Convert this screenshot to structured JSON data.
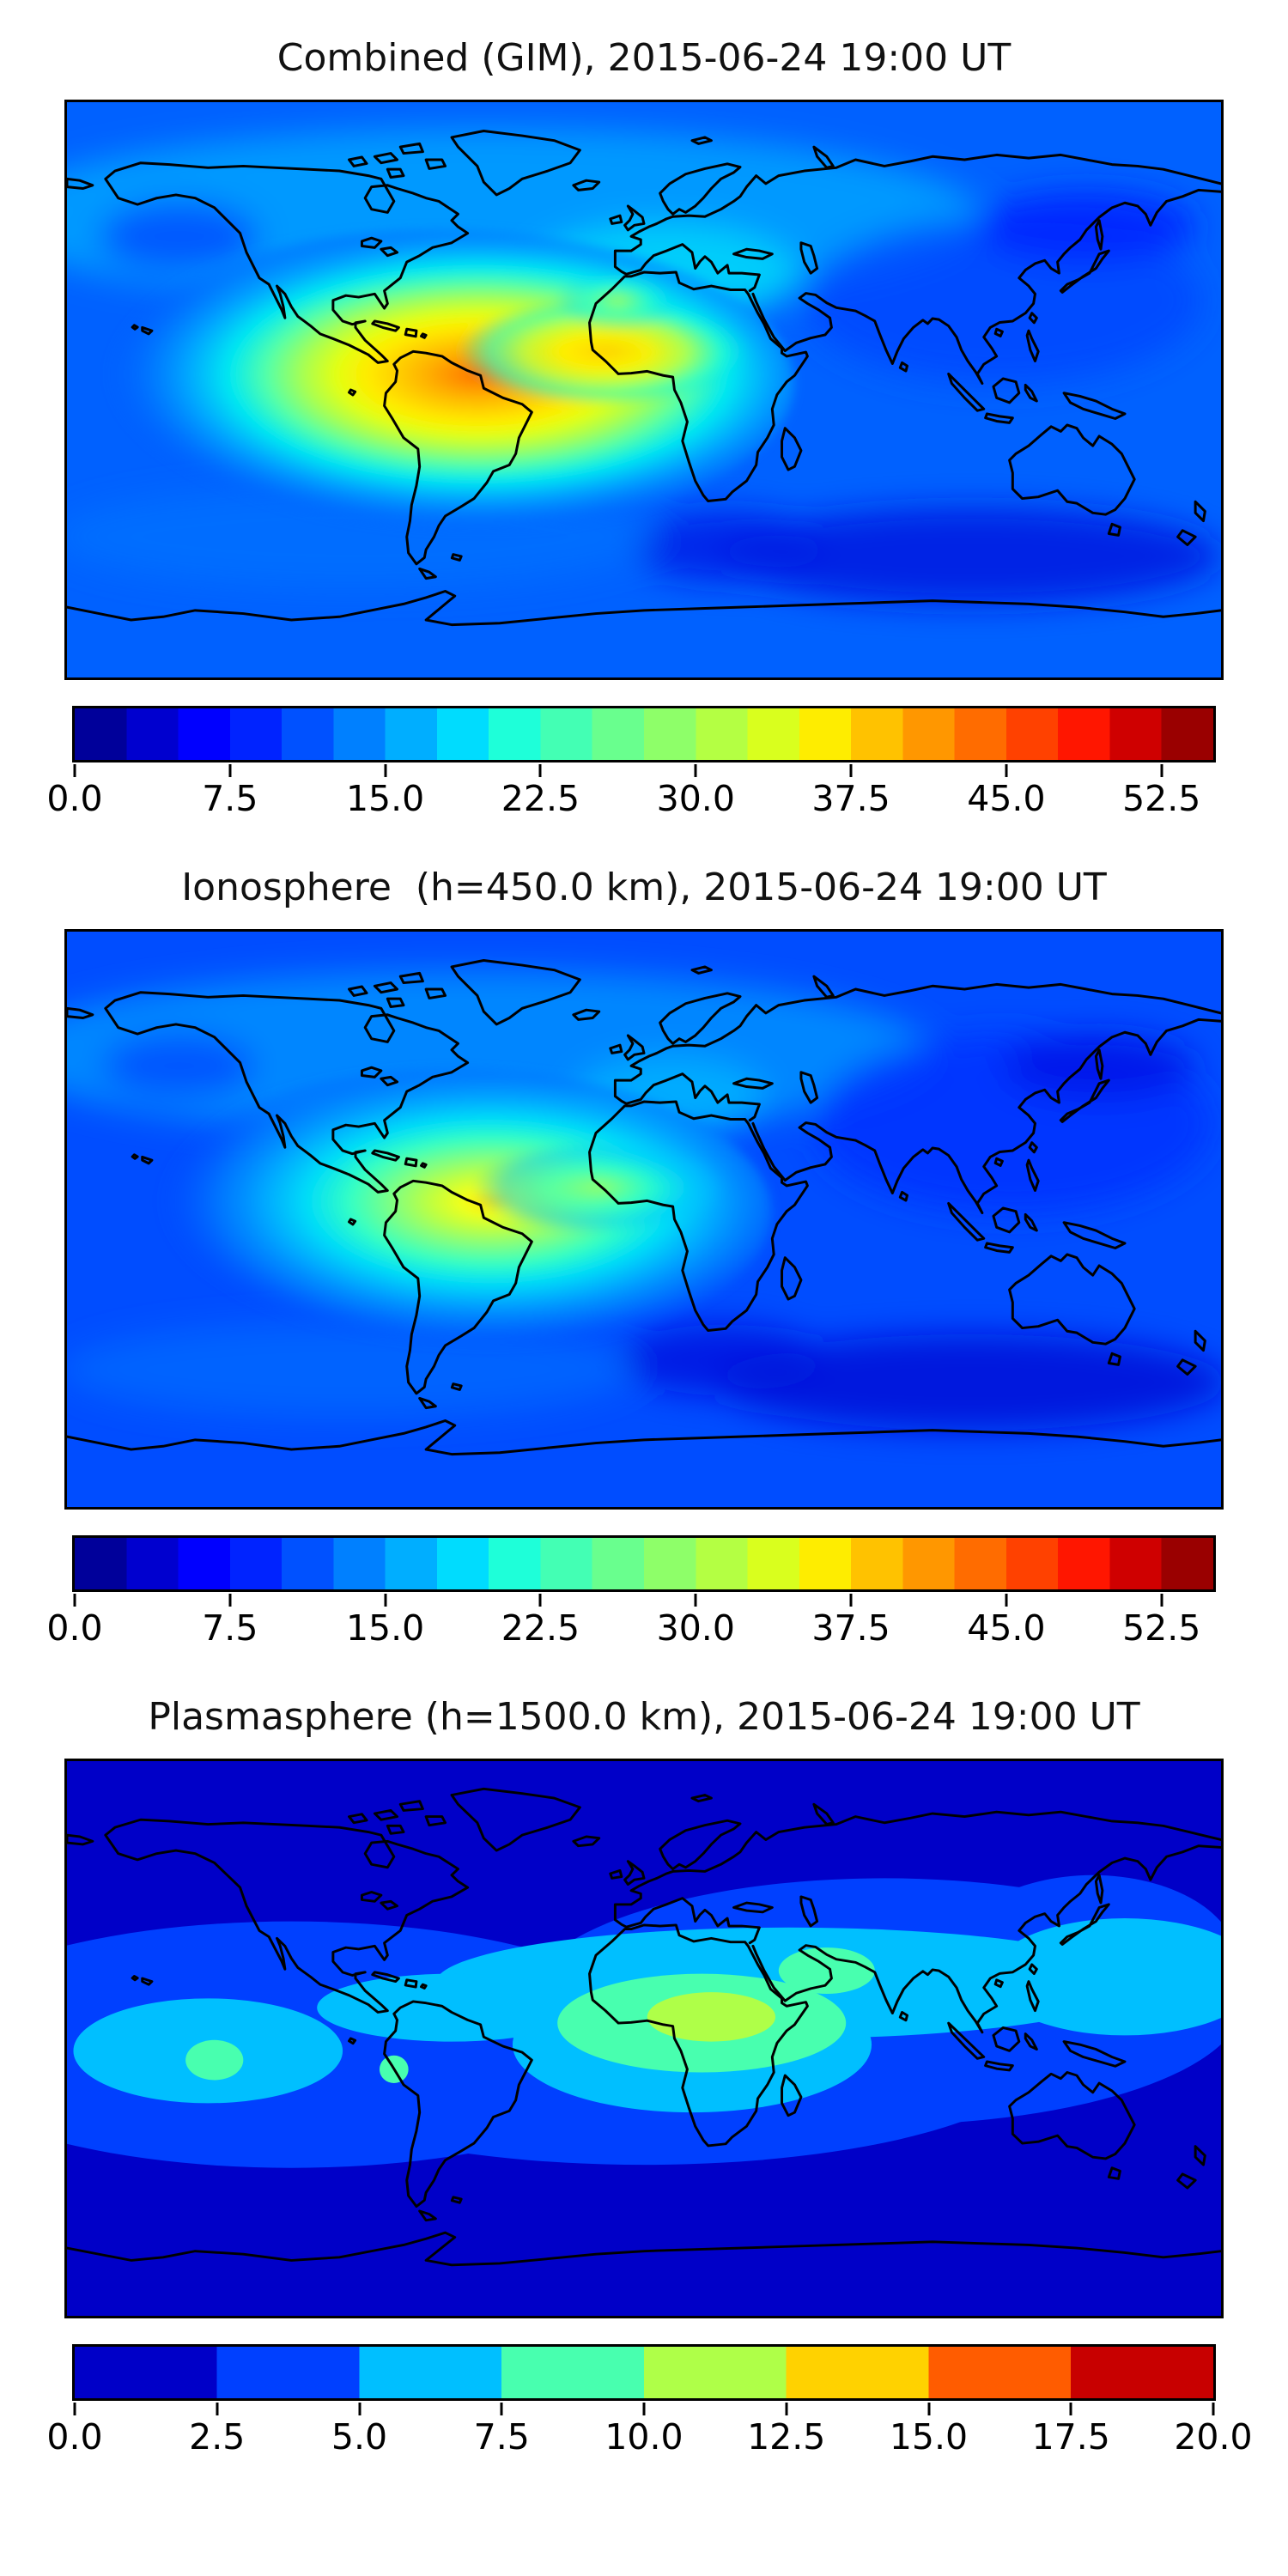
{
  "figure": {
    "background_color": "#ffffff",
    "frame_color": "#000000",
    "coastline_color": "#000000",
    "n_panels": 3
  },
  "chart_data": [
    {
      "type": "heatmap",
      "subtype": "filled_contour_world_map",
      "title": "Combined (GIM), 2015-06-24 19:00 UT",
      "projection": "equirectangular, lon -180..180, lat -90..90",
      "grid": false,
      "colorbar": {
        "orientation": "horizontal",
        "colormap": "jet",
        "vmin": 0,
        "vmax": 55,
        "n_segments": 22,
        "segment_colors": [
          "#00009a",
          "#0000cf",
          "#0000ff",
          "#0023ff",
          "#0051ff",
          "#0080ff",
          "#00aeff",
          "#00dcfe",
          "#1effd9",
          "#43ffb4",
          "#69ff8e",
          "#8eff69",
          "#b4ff43",
          "#d9ff1e",
          "#feed00",
          "#ffc200",
          "#ff9700",
          "#ff6c00",
          "#ff4100",
          "#ff1600",
          "#cf0000",
          "#9a0000"
        ],
        "tick_labels": [
          "0.0",
          "7.5",
          "15.0",
          "22.5",
          "30.0",
          "37.5",
          "45.0",
          "52.5"
        ],
        "tick_values": [
          0,
          7.5,
          15,
          22.5,
          30,
          37.5,
          45,
          52.5
        ]
      },
      "field_features": [
        {
          "feature": "peak",
          "lon": -52,
          "lat": 4,
          "value": 51
        },
        {
          "feature": "equatorial high band",
          "lon_range": [
            -130,
            10
          ],
          "lat_range": [
            -20,
            15
          ],
          "value_range": [
            30,
            50
          ]
        },
        {
          "feature": "secondary high lobe SE Pacific",
          "lon": -110,
          "lat": -8,
          "value": 41
        },
        {
          "feature": "low patch NE Asia",
          "lon": 140,
          "lat": 50,
          "value": 6
        },
        {
          "feature": "low band south Indian Ocean",
          "lon_range": [
            40,
            140
          ],
          "lat_range": [
            -60,
            -40
          ],
          "value": 4
        }
      ],
      "sample_grid": {
        "lons": [
          -165,
          -135,
          -105,
          -75,
          -45,
          -15,
          15,
          45,
          75,
          105,
          135,
          165
        ],
        "lats": [
          75,
          45,
          15,
          -15,
          -45,
          -75
        ],
        "values": [
          [
            10,
            10,
            11,
            12,
            12,
            12,
            11,
            10,
            8,
            8,
            8,
            9
          ],
          [
            12,
            13,
            14,
            14,
            16,
            17,
            15,
            12,
            8,
            6,
            6,
            8
          ],
          [
            18,
            22,
            28,
            38,
            42,
            33,
            25,
            14,
            10,
            9,
            9,
            12
          ],
          [
            30,
            35,
            38,
            40,
            30,
            18,
            10,
            7,
            7,
            8,
            9,
            14
          ],
          [
            12,
            14,
            15,
            16,
            12,
            8,
            5,
            4,
            4,
            5,
            6,
            8
          ],
          [
            8,
            8,
            9,
            9,
            8,
            6,
            5,
            4,
            4,
            5,
            5,
            6
          ]
        ]
      }
    },
    {
      "type": "heatmap",
      "subtype": "filled_contour_world_map",
      "title": "Ionosphere  (h=450.0 km), 2015-06-24 19:00 UT",
      "projection": "equirectangular, lon -180..180, lat -90..90",
      "grid": false,
      "colorbar": {
        "orientation": "horizontal",
        "colormap": "jet",
        "vmin": 0,
        "vmax": 55,
        "n_segments": 22,
        "segment_colors": [
          "#00009a",
          "#0000cf",
          "#0000ff",
          "#0023ff",
          "#0051ff",
          "#0080ff",
          "#00aeff",
          "#00dcfe",
          "#1effd9",
          "#43ffb4",
          "#69ff8e",
          "#8eff69",
          "#b4ff43",
          "#d9ff1e",
          "#feed00",
          "#ffc200",
          "#ff9700",
          "#ff6c00",
          "#ff4100",
          "#ff1600",
          "#cf0000",
          "#9a0000"
        ],
        "tick_labels": [
          "0.0",
          "7.5",
          "15.0",
          "22.5",
          "30.0",
          "37.5",
          "45.0",
          "52.5"
        ],
        "tick_values": [
          0,
          7.5,
          15,
          22.5,
          30,
          37.5,
          45,
          52.5
        ]
      },
      "field_features": [
        {
          "feature": "peak",
          "lon": -53,
          "lat": 5,
          "value": 36
        },
        {
          "feature": "high region South America / SE Pacific",
          "lon_range": [
            -140,
            -20
          ],
          "lat_range": [
            -30,
            15
          ],
          "value_range": [
            20,
            35
          ]
        },
        {
          "feature": "low patch NE Asia",
          "lon": 142,
          "lat": 48,
          "value": 5
        },
        {
          "feature": "low band south Indian Ocean",
          "lon_range": [
            20,
            140
          ],
          "lat_range": [
            -55,
            -35
          ],
          "value": 3
        }
      ],
      "sample_grid": {
        "lons": [
          -165,
          -135,
          -105,
          -75,
          -45,
          -15,
          15,
          45,
          75,
          105,
          135,
          165
        ],
        "lats": [
          75,
          45,
          15,
          -15,
          -45,
          -75
        ],
        "values": [
          [
            8,
            9,
            10,
            10,
            10,
            10,
            9,
            8,
            7,
            7,
            7,
            8
          ],
          [
            10,
            11,
            12,
            12,
            13,
            13,
            11,
            8,
            6,
            5,
            5,
            7
          ],
          [
            14,
            17,
            22,
            28,
            32,
            24,
            16,
            9,
            7,
            6,
            6,
            9
          ],
          [
            22,
            26,
            29,
            31,
            22,
            12,
            6,
            5,
            5,
            6,
            7,
            10
          ],
          [
            10,
            11,
            12,
            13,
            9,
            6,
            4,
            3,
            3,
            4,
            5,
            7
          ],
          [
            7,
            7,
            8,
            8,
            7,
            5,
            4,
            3,
            3,
            4,
            4,
            5
          ]
        ]
      }
    },
    {
      "type": "heatmap",
      "subtype": "filled_contour_world_map",
      "title": "Plasmasphere (h=1500.0 km), 2015-06-24 19:00 UT",
      "projection": "equirectangular, lon -180..180, lat -90..90",
      "grid": false,
      "colorbar": {
        "orientation": "horizontal",
        "colormap": "jet",
        "vmin": 0,
        "vmax": 20,
        "n_segments": 8,
        "segment_colors": [
          "#0000c8",
          "#0040ff",
          "#00bfff",
          "#48ffaf",
          "#afff48",
          "#ffd200",
          "#ff5c00",
          "#c80000"
        ],
        "tick_labels": [
          "0.0",
          "2.5",
          "5.0",
          "7.5",
          "10.0",
          "12.5",
          "15.0",
          "17.5",
          "20.0"
        ],
        "tick_values": [
          0,
          2.5,
          5,
          7.5,
          10,
          12.5,
          15,
          17.5,
          20
        ]
      },
      "field_features": [
        {
          "feature": "peak",
          "lon": 20,
          "lat": 7,
          "value": 11
        },
        {
          "feature": "spring-green blob central Africa",
          "lon_range": [
            -25,
            42
          ],
          "lat_range": [
            -10,
            20
          ],
          "value_range": [
            7.5,
            10
          ]
        },
        {
          "feature": "spring-green patch Arabia / NW India",
          "lon": 57,
          "lat": 22,
          "value": 8.5
        },
        {
          "feature": "spring-green spot east Pacific",
          "lon": -133,
          "lat": -8,
          "value": 8.5
        },
        {
          "feature": "cyan tropical band",
          "lon_range": [
            -160,
            180
          ],
          "lat_range": [
            -15,
            35
          ],
          "value_range": [
            5,
            7.5
          ]
        },
        {
          "feature": "dark background high latitudes",
          "value_range": [
            0,
            2.5
          ]
        }
      ],
      "sample_grid": {
        "lons": [
          -165,
          -135,
          -105,
          -75,
          -45,
          -15,
          15,
          45,
          75,
          105,
          135,
          165
        ],
        "lats": [
          75,
          45,
          15,
          -15,
          -45,
          -75
        ],
        "values": [
          [
            2,
            2,
            2,
            2,
            2,
            2,
            2,
            2,
            2,
            2,
            2,
            2
          ],
          [
            2,
            2,
            2,
            2,
            3,
            3,
            4,
            4,
            4,
            4,
            3,
            2
          ],
          [
            5,
            6,
            5,
            6,
            7,
            8,
            10,
            9,
            7,
            6,
            6,
            5
          ],
          [
            6,
            8,
            6,
            5,
            6,
            8,
            8,
            6,
            4,
            3,
            3,
            4
          ],
          [
            2,
            2,
            3,
            3,
            3,
            3,
            3,
            2,
            2,
            2,
            2,
            2
          ],
          [
            1,
            1,
            1,
            1,
            1,
            1,
            1,
            1,
            1,
            1,
            1,
            1
          ]
        ]
      }
    }
  ]
}
